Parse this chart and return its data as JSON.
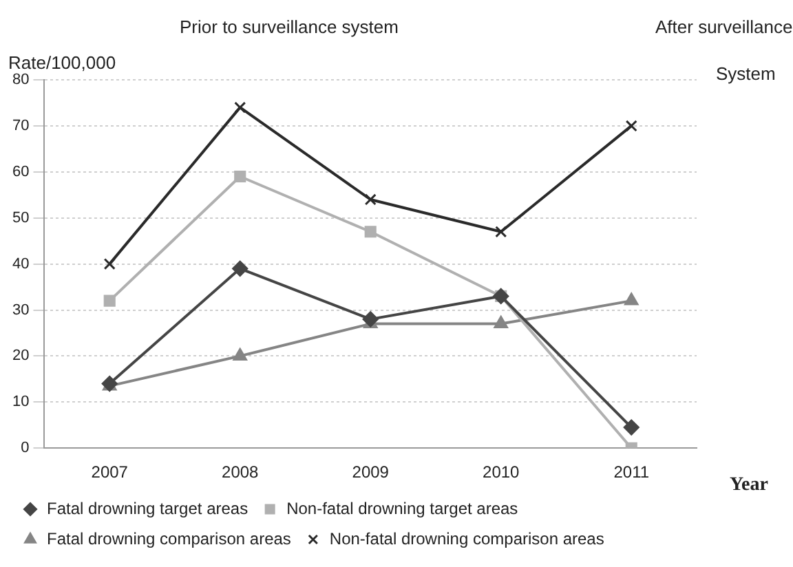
{
  "chart_data": {
    "type": "line",
    "ylabel": "Rate/100,000",
    "xlabel": "Year",
    "annotations": [
      "Prior to surveillance system",
      "After surveillance",
      "System"
    ],
    "categories": [
      "2007",
      "2008",
      "2009",
      "2010",
      "2011"
    ],
    "series": [
      {
        "name": "Fatal drowning target areas",
        "color": "#454545",
        "marker": "diamond",
        "values": [
          14,
          39,
          28,
          33,
          4.5
        ]
      },
      {
        "name": "Non-fatal drowning target areas",
        "color": "#b0b0b0",
        "marker": "square",
        "values": [
          32,
          59,
          47,
          33,
          0
        ]
      },
      {
        "name": "Fatal drowning comparison areas",
        "color": "#858585",
        "marker": "triangle",
        "values": [
          13.5,
          20,
          27,
          27,
          32
        ]
      },
      {
        "name": "Non-fatal drowning comparison areas",
        "color": "#2a2a2a",
        "marker": "cross",
        "values": [
          40,
          74,
          54,
          47,
          70
        ]
      }
    ],
    "ylim": [
      0,
      80
    ],
    "yticks": [
      0,
      10,
      20,
      30,
      40,
      50,
      60,
      70,
      80
    ],
    "grid": "y",
    "legend": "bottom",
    "line_style": "solid"
  }
}
